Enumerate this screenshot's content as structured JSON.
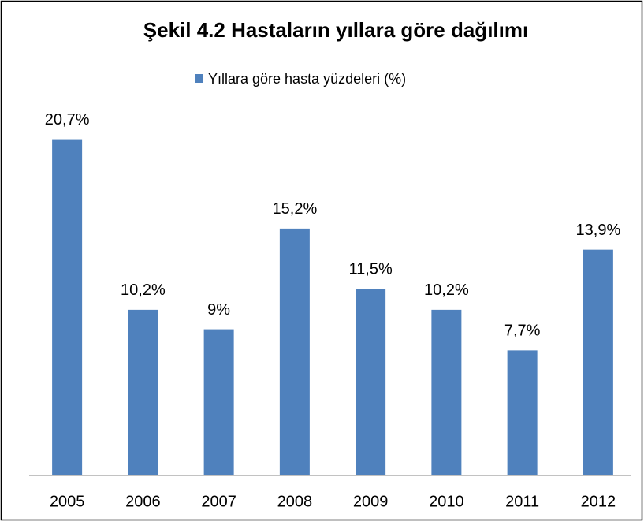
{
  "chart_data": {
    "type": "bar",
    "title": "Şekil 4.2  Hastaların  yıllara göre dağılımı",
    "categories": [
      "2005",
      "2006",
      "2007",
      "2008",
      "2009",
      "2010",
      "2011",
      "2012"
    ],
    "series": [
      {
        "name": "Yıllara göre hasta yüzdeleri (%)",
        "color": "#4f81bd",
        "values": [
          20.7,
          10.2,
          9,
          15.2,
          11.5,
          10.2,
          7.7,
          13.9
        ],
        "value_labels": [
          "20,7%",
          "10,2%",
          "9%",
          "15,2%",
          "11,5%",
          "10,2%",
          "7,7%",
          "13,9%"
        ]
      }
    ],
    "ylim": [
      0,
      25
    ],
    "legend": "top"
  }
}
